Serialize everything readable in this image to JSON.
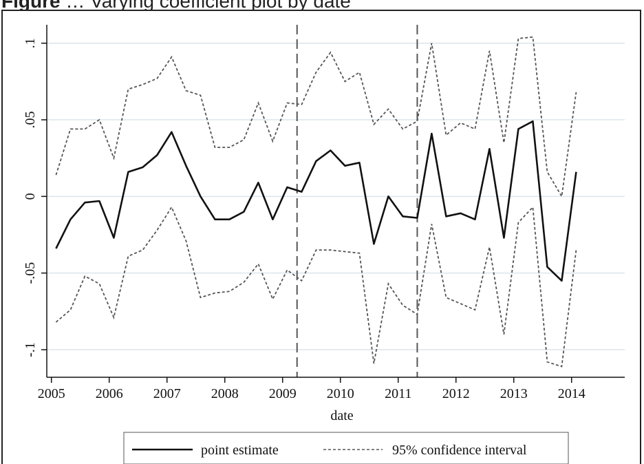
{
  "caption": {
    "label": "Figure",
    "text": "… Varying coefficient plot by date"
  },
  "chart_data": {
    "type": "line",
    "title": "",
    "xlabel": "date",
    "ylabel": "",
    "xlim": [
      2004.92,
      2014.92
    ],
    "ylim": [
      -0.118,
      0.112
    ],
    "x_ticks": [
      2005,
      2006,
      2007,
      2008,
      2009,
      2010,
      2011,
      2012,
      2013,
      2014
    ],
    "x_tick_labels": [
      "2005",
      "2006",
      "2007",
      "2008",
      "2009",
      "2010",
      "2011",
      "2012",
      "2013",
      "2014"
    ],
    "y_ticks": [
      -0.1,
      -0.05,
      0,
      0.05,
      0.1
    ],
    "y_tick_labels": [
      "-.1",
      "-.05",
      "0",
      ".05",
      ".1"
    ],
    "grid": "horizontal",
    "vertical_lines": [
      2009.25,
      2011.33
    ],
    "legend_position": "bottom",
    "colors": {
      "point_estimate": "#111111",
      "confidence_interval": "#555555",
      "grid": "#dbe5ea",
      "reference_line": "#555555"
    },
    "x": [
      2005.08,
      2005.33,
      2005.58,
      2005.83,
      2006.08,
      2006.33,
      2006.58,
      2006.83,
      2007.08,
      2007.33,
      2007.58,
      2007.83,
      2008.08,
      2008.33,
      2008.58,
      2008.83,
      2009.08,
      2009.33,
      2009.58,
      2009.83,
      2010.08,
      2010.33,
      2010.58,
      2010.83,
      2011.08,
      2011.33,
      2011.58,
      2011.83,
      2012.08,
      2012.33,
      2012.58,
      2012.83,
      2013.08,
      2013.33,
      2013.58,
      2013.83,
      2014.08
    ],
    "series": [
      {
        "name": "point estimate",
        "style": "solid",
        "values": [
          -0.034,
          -0.015,
          -0.004,
          -0.003,
          -0.027,
          0.016,
          0.019,
          0.027,
          0.042,
          0.02,
          0.0,
          -0.015,
          -0.015,
          -0.01,
          0.009,
          -0.015,
          0.006,
          0.003,
          0.023,
          0.03,
          0.02,
          0.022,
          -0.031,
          0.0,
          -0.013,
          -0.014,
          0.041,
          -0.013,
          -0.011,
          -0.015,
          0.031,
          -0.027,
          0.044,
          0.049,
          -0.046,
          -0.055,
          0.016
        ]
      },
      {
        "name": "95% confidence interval",
        "style": "dashed",
        "values": [
          0.014,
          0.044,
          0.044,
          0.05,
          0.025,
          0.07,
          0.073,
          0.077,
          0.091,
          0.069,
          0.066,
          0.032,
          0.032,
          0.037,
          0.061,
          0.036,
          0.061,
          0.06,
          0.081,
          0.094,
          0.075,
          0.081,
          0.047,
          0.057,
          0.044,
          0.049,
          0.1,
          0.04,
          0.048,
          0.044,
          0.095,
          0.035,
          0.103,
          0.104,
          0.016,
          0.0,
          0.068
        ]
      },
      {
        "name": "",
        "style": "dashed",
        "values": [
          -0.082,
          -0.074,
          -0.052,
          -0.057,
          -0.079,
          -0.039,
          -0.035,
          -0.022,
          -0.007,
          -0.029,
          -0.066,
          -0.063,
          -0.062,
          -0.056,
          -0.044,
          -0.067,
          -0.048,
          -0.055,
          -0.035,
          -0.035,
          -0.036,
          -0.037,
          -0.109,
          -0.057,
          -0.071,
          -0.077,
          -0.018,
          -0.066,
          -0.07,
          -0.074,
          -0.033,
          -0.09,
          -0.017,
          -0.007,
          -0.108,
          -0.111,
          -0.035
        ]
      }
    ],
    "legend": [
      "point estimate",
      "95% confidence interval"
    ]
  }
}
